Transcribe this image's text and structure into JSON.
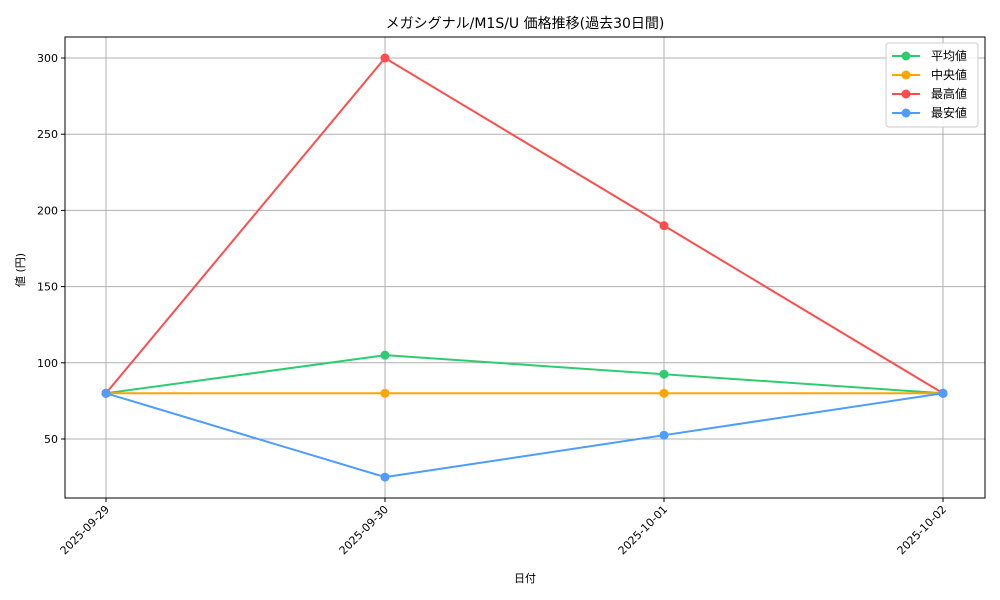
{
  "chart_data": {
    "type": "line",
    "title": "メガシグナル/M1S/U 価格推移(過去30日間)",
    "xlabel": "日付",
    "ylabel": "値 (円)",
    "categories": [
      "2025-09-29",
      "2025-09-30",
      "2025-10-01",
      "2025-10-02"
    ],
    "yticks": [
      50,
      100,
      150,
      200,
      250,
      300
    ],
    "ylim": [
      11.25,
      313.75
    ],
    "grid": true,
    "legend_position": "upper right",
    "series": [
      {
        "name": "平均値",
        "color": "#2ecc71",
        "values": [
          80,
          105,
          92.5,
          80
        ]
      },
      {
        "name": "中央値",
        "color": "#ffa500",
        "values": [
          80,
          80,
          80,
          80
        ]
      },
      {
        "name": "最高値",
        "color": "#ff4d4d",
        "values": [
          80,
          300,
          190,
          80
        ]
      },
      {
        "name": "最安値",
        "color": "#4d9cff",
        "values": [
          80,
          25,
          52.5,
          80
        ]
      }
    ]
  }
}
